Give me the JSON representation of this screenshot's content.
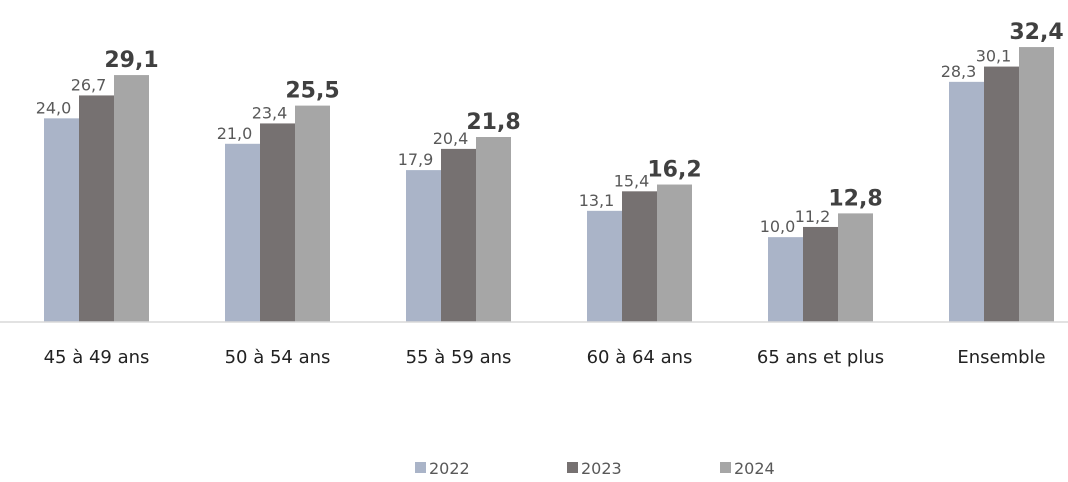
{
  "chart_data": {
    "type": "bar",
    "categories": [
      "45 à 49 ans",
      "50 à 54 ans",
      "55 à 59 ans",
      "60 à 64 ans",
      "65 ans et plus",
      "Ensemble"
    ],
    "series": [
      {
        "name": "2022",
        "color": "#aab4c8",
        "values": [
          24.0,
          21.0,
          17.9,
          13.1,
          10.0,
          28.3
        ],
        "value_labels": [
          "24,0",
          "21,0",
          "17,9",
          "13,1",
          "10,0",
          "28,3"
        ]
      },
      {
        "name": "2023",
        "color": "#767171",
        "values": [
          26.7,
          23.4,
          20.4,
          15.4,
          11.2,
          30.1
        ],
        "value_labels": [
          "26,7",
          "23,4",
          "20,4",
          "15,4",
          "11,2",
          "30,1"
        ]
      },
      {
        "name": "2024",
        "color": "#a6a6a6",
        "values": [
          29.1,
          25.5,
          21.8,
          16.2,
          12.8,
          32.4
        ],
        "value_labels": [
          "29,1",
          "25,5",
          "21,8",
          "16,2",
          "12,8",
          "32,4"
        ]
      }
    ],
    "ylim": [
      0,
      35
    ],
    "legend": "bottom"
  }
}
